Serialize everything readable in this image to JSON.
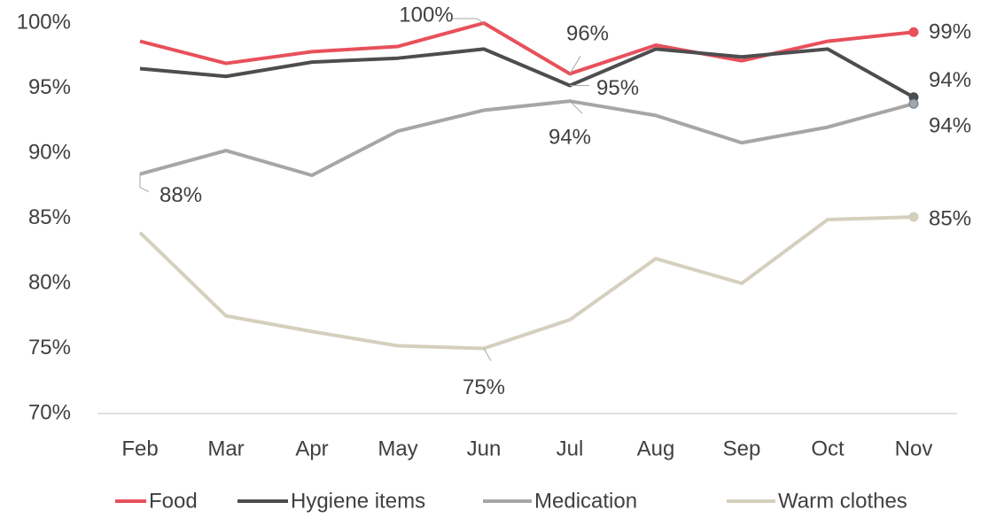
{
  "chart_data": {
    "type": "line",
    "categories": [
      "Feb",
      "Mar",
      "Apr",
      "May",
      "Jun",
      "Jul",
      "Aug",
      "Sep",
      "Oct",
      "Nov"
    ],
    "series": [
      {
        "name": "Food",
        "color": "#e8505b",
        "values": [
          98.6,
          96.9,
          97.8,
          98.2,
          100,
          96.1,
          98.3,
          97.1,
          98.6,
          99.3
        ],
        "value_labels": [
          null,
          null,
          null,
          null,
          "100%",
          "96%",
          null,
          null,
          null,
          "99%"
        ]
      },
      {
        "name": "Hygiene items",
        "color": "#4d4d4f",
        "values": [
          96.5,
          95.9,
          97.0,
          97.3,
          98.0,
          95.2,
          98.0,
          97.4,
          98.0,
          94.3
        ],
        "value_labels": [
          null,
          null,
          null,
          null,
          null,
          "95%",
          null,
          null,
          null,
          "94%"
        ]
      },
      {
        "name": "Medication",
        "color": "#a6a6a6",
        "values": [
          88.4,
          90.2,
          88.3,
          91.7,
          93.3,
          94.0,
          92.9,
          90.8,
          92.0,
          93.8
        ],
        "value_labels": [
          "88%",
          null,
          null,
          null,
          null,
          "94%",
          null,
          null,
          null,
          "94%"
        ]
      },
      {
        "name": "Warm clothes",
        "color": "#d5cfbe",
        "values": [
          83.9,
          77.5,
          76.3,
          75.2,
          75.0,
          77.2,
          81.9,
          80.0,
          84.9,
          85.1
        ],
        "value_labels": [
          null,
          null,
          null,
          null,
          "75%",
          null,
          null,
          null,
          null,
          "85%"
        ]
      }
    ],
    "ylim": [
      70,
      100
    ],
    "yticks": [
      {
        "value": 70,
        "label": "70%"
      },
      {
        "value": 75,
        "label": "75%"
      },
      {
        "value": 80,
        "label": "80%"
      },
      {
        "value": 85,
        "label": "85%"
      },
      {
        "value": 90,
        "label": "90%"
      },
      {
        "value": 95,
        "label": "95%"
      },
      {
        "value": 100,
        "label": "100%"
      }
    ],
    "grid": false,
    "legend": "bottom"
  }
}
